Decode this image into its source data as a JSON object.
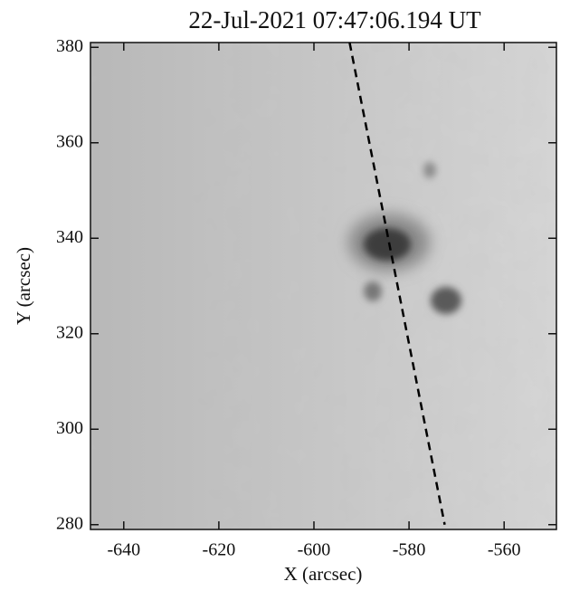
{
  "chart_data": {
    "type": "image",
    "title": "22-Jul-2021 07:47:06.194 UT",
    "xlabel": "X (arcsec)",
    "ylabel": "Y (arcsec)",
    "xlim": [
      -647,
      -549
    ],
    "ylim": [
      279,
      381
    ],
    "xticks": [
      -640,
      -620,
      -600,
      -580,
      -560
    ],
    "yticks": [
      280,
      300,
      320,
      340,
      360,
      380
    ],
    "slit": {
      "x": [
        -592.5,
        -572.5
      ],
      "y": [
        381,
        280
      ]
    }
  }
}
